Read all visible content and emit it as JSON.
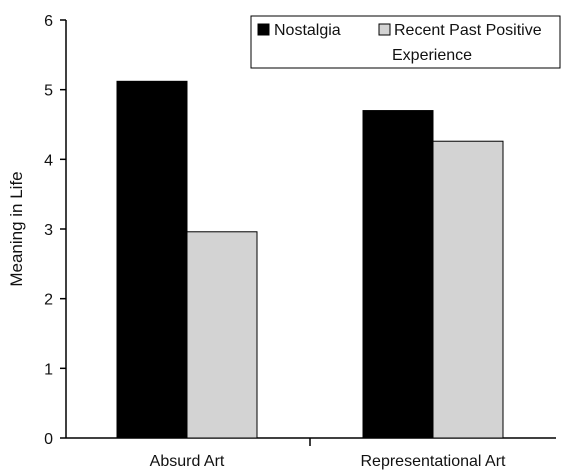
{
  "chart_data": {
    "type": "bar",
    "title": "",
    "xlabel": "",
    "ylabel": "Meaning in Life",
    "categories": [
      "Absurd Art",
      "Representational Art"
    ],
    "series": [
      {
        "name": "Nostalgia",
        "values": [
          5.12,
          4.7
        ],
        "color": "#000000"
      },
      {
        "name": "Recent Past Positive Experience",
        "values": [
          2.96,
          4.26
        ],
        "color": "#d3d3d3"
      }
    ],
    "ylim": [
      0,
      6
    ],
    "yticks": [
      "0",
      "1",
      "2",
      "3",
      "4",
      "5",
      "6"
    ],
    "grid": false,
    "legend": {
      "placement": "top-right",
      "entries": [
        {
          "label_line1": "Nostalgia",
          "label_line2": ""
        },
        {
          "label_line1": "Recent Past Positive",
          "label_line2": "Experience"
        }
      ]
    }
  }
}
